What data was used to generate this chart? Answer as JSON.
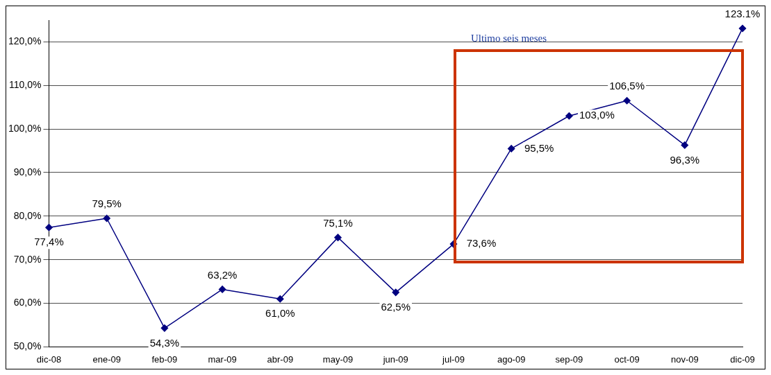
{
  "chart_data": {
    "type": "line",
    "categories": [
      "dic-08",
      "ene-09",
      "feb-09",
      "mar-09",
      "abr-09",
      "may-09",
      "jun-09",
      "jul-09",
      "ago-09",
      "sep-09",
      "oct-09",
      "nov-09",
      "dic-09"
    ],
    "series": [
      {
        "color": "#000080",
        "values": [
          77.4,
          79.5,
          54.3,
          63.2,
          61.0,
          75.1,
          62.5,
          73.6,
          95.5,
          103.0,
          106.5,
          96.3,
          123.1
        ],
        "value_labels": [
          "77,4%",
          "79,5%",
          "54,3%",
          "63,2%",
          "61,0%",
          "75,1%",
          "62,5%",
          "73,6%",
          "95,5%",
          "103,0%",
          "106,5%",
          "96,3%",
          "123.1%"
        ]
      }
    ],
    "ylim": [
      50,
      125
    ],
    "yticks": [
      {
        "value": 50,
        "label": "50,0%"
      },
      {
        "value": 60,
        "label": "60,0%"
      },
      {
        "value": 70,
        "label": "70,0%"
      },
      {
        "value": 80,
        "label": "80,0%"
      },
      {
        "value": 90,
        "label": "90,0%"
      },
      {
        "value": 100,
        "label": "100,0%"
      },
      {
        "value": 110,
        "label": "110,0%"
      },
      {
        "value": 120,
        "label": "120,0%"
      }
    ],
    "grid": "y",
    "legend": false,
    "marker": "diamond",
    "line_style": "solid",
    "annotations": [
      "Ultimo seis meses"
    ]
  }
}
